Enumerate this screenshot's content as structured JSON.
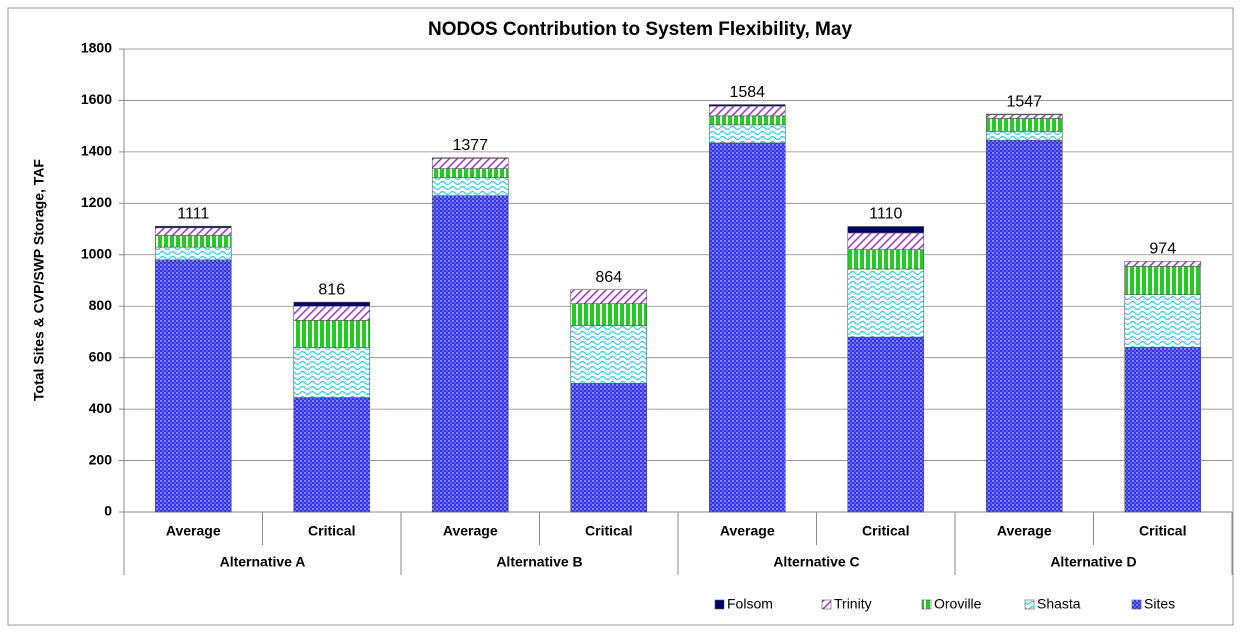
{
  "chart_data": {
    "type": "stacked_bar",
    "title": "NODOS Contribution to System Flexibility, May",
    "y_label": "Total Sites & CVP/SWP Storage, TAF",
    "categories": [
      "Average",
      "Critical",
      "Average",
      "Critical",
      "Average",
      "Critical",
      "Average",
      "Critical"
    ],
    "groups": [
      "Alternative A",
      "Alternative B",
      "Alternative C",
      "Alternative D"
    ],
    "series": [
      {
        "name": "Sites",
        "color": "#3333ff",
        "values": [
          980,
          445,
          1230,
          500,
          1435,
          680,
          1445,
          640
        ]
      },
      {
        "name": "Shasta",
        "color": "#33ccee",
        "values": [
          50,
          195,
          70,
          225,
          70,
          265,
          35,
          205
        ]
      },
      {
        "name": "Oroville",
        "color": "#22cc22",
        "values": [
          45,
          105,
          35,
          85,
          35,
          75,
          50,
          110
        ]
      },
      {
        "name": "Trinity",
        "color": "#9933cc",
        "values": [
          30,
          55,
          40,
          54,
          38,
          65,
          15,
          19
        ]
      },
      {
        "name": "Folsom",
        "color": "#000066",
        "values": [
          6,
          16,
          2,
          0,
          6,
          25,
          2,
          0
        ]
      }
    ],
    "totals": [
      1111,
      816,
      1377,
      864,
      1584,
      1110,
      1547,
      974
    ],
    "ylim": [
      0,
      1800
    ],
    "yticks": [
      0,
      200,
      400,
      600,
      800,
      1000,
      1200,
      1400,
      1600,
      1800
    ],
    "grid": true,
    "legend": "bottom-right"
  }
}
